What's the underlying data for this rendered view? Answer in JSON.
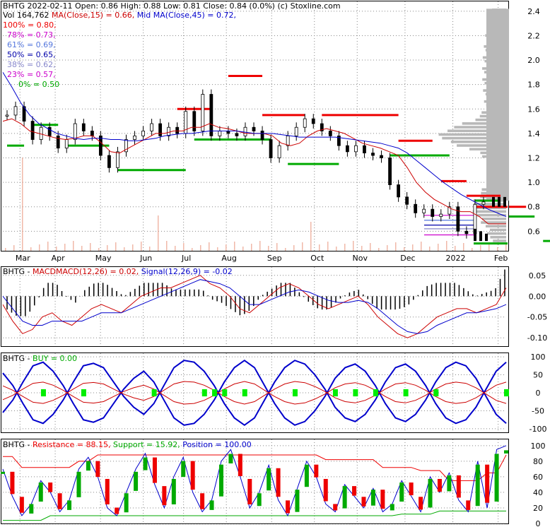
{
  "colors": {
    "ma15": "#cc0000",
    "ma45": "#0000cc",
    "support": "#00aa00",
    "resistance": "#ee0000",
    "volume_profile": "#b8b8b8",
    "macd_hist": "#000000",
    "buy_marker": "#00ee00",
    "stoch_k": "#00aa00",
    "stoch_d": "#ee0000"
  },
  "price_panel": {
    "header_line1": "BHTG  2022-02-11 Open: 0.86  High: 0.88  Low: 0.81  Close: 0.84 (0.0%)  (c) Stoxline.com",
    "header_vol": "Vol 164,762",
    "header_ma": "MA(Close,15) = 0.66,",
    "header_mid": "Mid MA(Close,45) = 0.72,",
    "fib": [
      {
        "label": "100% = 0.80,",
        "color": "#ee0000"
      },
      {
        "label": "78% = 0.73,",
        "color": "#cc00cc"
      },
      {
        "label": "61% = 0.69,",
        "color": "#5577dd"
      },
      {
        "label": "50% = 0.65,",
        "color": "#0000aa"
      },
      {
        "label": "38% = 0.62,",
        "color": "#8888cc"
      },
      {
        "label": "23% = 0.57,",
        "color": "#cc00cc"
      },
      {
        "label": "0% = 0.50",
        "color": "#00aa00"
      }
    ]
  },
  "macd_panel": {
    "name": "BHTG - ",
    "label_macd": "MACDMACD(12,26) = 0.02,",
    "label_signal": "Signal(12,26,9) = -0.02"
  },
  "buy_panel": {
    "name": "BHTG - ",
    "label_buy": "BUY = 0.00"
  },
  "srp_panel": {
    "name": "BHTG - ",
    "label_res": "Resistance = 88.15,",
    "label_sup": "Support = 15.92,",
    "label_pos": "Position = 100.00"
  },
  "chart_data": [
    {
      "type": "candlestick",
      "title": "BHTG  2022-02-11 Open: 0.86  High: 0.88  Low: 0.81  Close: 0.84 (0.0%)",
      "x_labels": [
        "Mar",
        "Apr",
        "May",
        "Jun",
        "Jul",
        "Aug",
        "Sep",
        "Oct",
        "Nov",
        "Dec",
        "2022",
        "Feb"
      ],
      "y_ticks": [
        0.6,
        0.8,
        1.0,
        1.2,
        1.4,
        1.6,
        1.8,
        2.0,
        2.2,
        2.4
      ],
      "ylim": [
        0.44,
        2.48
      ],
      "close_series": [
        1.55,
        1.62,
        1.5,
        1.35,
        1.45,
        1.38,
        1.28,
        1.35,
        1.48,
        1.42,
        1.38,
        1.22,
        1.12,
        1.25,
        1.35,
        1.38,
        1.42,
        1.48,
        1.38,
        1.45,
        1.4,
        1.58,
        1.42,
        1.72,
        1.38,
        1.42,
        1.4,
        1.38,
        1.45,
        1.42,
        1.35,
        1.2,
        1.3,
        1.38,
        1.45,
        1.52,
        1.48,
        1.42,
        1.38,
        1.3,
        1.25,
        1.3,
        1.24,
        1.22,
        1.2,
        0.98,
        0.88,
        0.82,
        0.75,
        0.78,
        0.72,
        0.74,
        0.8,
        0.6,
        0.58,
        0.82,
        0.84
      ],
      "ma15": [
        1.5,
        1.52,
        1.48,
        1.42,
        1.4,
        1.38,
        1.36,
        1.35,
        1.36,
        1.38,
        1.38,
        1.32,
        1.25,
        1.24,
        1.28,
        1.32,
        1.36,
        1.4,
        1.4,
        1.42,
        1.42,
        1.45,
        1.45,
        1.48,
        1.45,
        1.44,
        1.42,
        1.4,
        1.4,
        1.4,
        1.38,
        1.32,
        1.3,
        1.32,
        1.38,
        1.42,
        1.44,
        1.42,
        1.4,
        1.36,
        1.32,
        1.3,
        1.28,
        1.25,
        1.22,
        1.12,
        1.0,
        0.92,
        0.86,
        0.82,
        0.78,
        0.76,
        0.76,
        0.72,
        0.66,
        0.66,
        0.66
      ],
      "ma45": [
        1.9,
        1.78,
        1.65,
        1.55,
        1.48,
        1.44,
        1.4,
        1.38,
        1.36,
        1.35,
        1.36,
        1.36,
        1.35,
        1.35,
        1.34,
        1.34,
        1.35,
        1.36,
        1.38,
        1.39,
        1.4,
        1.4,
        1.41,
        1.42,
        1.42,
        1.42,
        1.42,
        1.41,
        1.4,
        1.4,
        1.4,
        1.39,
        1.38,
        1.37,
        1.37,
        1.37,
        1.37,
        1.37,
        1.36,
        1.35,
        1.34,
        1.33,
        1.32,
        1.3,
        1.28,
        1.24,
        1.18,
        1.12,
        1.06,
        1.0,
        0.95,
        0.9,
        0.86,
        0.82,
        0.78,
        0.75,
        0.72
      ],
      "resistance_levels": [
        {
          "i0": 20,
          "i1": 24,
          "y": 1.6
        },
        {
          "i0": 26,
          "i1": 30,
          "y": 1.87
        },
        {
          "i0": 30,
          "i1": 35,
          "y": 1.55
        },
        {
          "i0": 37,
          "i1": 46,
          "y": 1.55
        },
        {
          "i0": 46,
          "i1": 50,
          "y": 1.34
        },
        {
          "i0": 51,
          "i1": 54,
          "y": 1.01
        },
        {
          "i0": 54,
          "i1": 58,
          "y": 0.89
        },
        {
          "i0": 59,
          "i1": 61,
          "y": 0.8
        }
      ],
      "support_levels": [
        {
          "i0": 0,
          "i1": 2,
          "y": 1.3
        },
        {
          "i0": 3,
          "i1": 6,
          "y": 1.47
        },
        {
          "i0": 7,
          "i1": 12,
          "y": 1.3
        },
        {
          "i0": 13,
          "i1": 21,
          "y": 1.1
        },
        {
          "i0": 22,
          "i1": 31,
          "y": 1.35
        },
        {
          "i0": 33,
          "i1": 39,
          "y": 1.15
        },
        {
          "i0": 45,
          "i1": 52,
          "y": 1.22
        },
        {
          "i0": 55,
          "i1": 58,
          "y": 0.85
        },
        {
          "i0": 59,
          "i1": 62,
          "y": 0.72
        },
        {
          "i0": 63,
          "i1": 66,
          "y": 0.52
        }
      ]
    },
    {
      "type": "bar",
      "title": "MACDMACD(12,26) = 0.02, Signal(12,26,9) = -0.02",
      "y_ticks": [
        0.05,
        0.0,
        -0.05,
        -0.1
      ],
      "ylim": [
        -0.12,
        0.07
      ],
      "series": [
        {
          "name": "MACD",
          "values": [
            -0.02,
            -0.06,
            -0.09,
            -0.08,
            -0.05,
            -0.04,
            -0.06,
            -0.07,
            -0.05,
            -0.03,
            -0.02,
            -0.03,
            -0.04,
            -0.02,
            0.0,
            0.01,
            0.02,
            0.02,
            0.03,
            0.04,
            0.05,
            0.03,
            0.02,
            0.0,
            -0.03,
            -0.04,
            -0.02,
            0.0,
            0.02,
            0.03,
            0.02,
            0.0,
            -0.02,
            -0.03,
            -0.02,
            -0.01,
            0.0,
            -0.02,
            -0.05,
            -0.07,
            -0.09,
            -0.1,
            -0.09,
            -0.07,
            -0.05,
            -0.04,
            -0.03,
            -0.03,
            -0.04,
            -0.03,
            -0.02,
            0.02
          ]
        },
        {
          "name": "Signal",
          "values": [
            0.0,
            -0.03,
            -0.06,
            -0.07,
            -0.07,
            -0.06,
            -0.06,
            -0.06,
            -0.06,
            -0.05,
            -0.04,
            -0.04,
            -0.04,
            -0.03,
            -0.02,
            -0.01,
            0.0,
            0.01,
            0.02,
            0.03,
            0.04,
            0.035,
            0.03,
            0.02,
            0.0,
            -0.02,
            -0.02,
            -0.01,
            0.0,
            0.01,
            0.015,
            0.01,
            0.0,
            -0.01,
            -0.015,
            -0.015,
            -0.01,
            -0.015,
            -0.03,
            -0.05,
            -0.07,
            -0.085,
            -0.09,
            -0.085,
            -0.07,
            -0.06,
            -0.05,
            -0.04,
            -0.04,
            -0.035,
            -0.03,
            -0.02
          ]
        }
      ]
    },
    {
      "type": "line",
      "title": "BUY = 0.00",
      "y_ticks": [
        100,
        50,
        0,
        -50,
        -100
      ],
      "ylim": [
        -110,
        110
      ],
      "series": [
        {
          "name": "upper band",
          "values": [
            55,
            20,
            -30,
            -75,
            -85,
            -60,
            -20,
            30,
            75,
            82,
            70,
            30,
            -10,
            -40,
            -60,
            -30,
            20,
            70,
            90,
            85,
            60,
            20,
            -30,
            -70,
            -90,
            -70,
            -20,
            30,
            70,
            90,
            80,
            50,
            10,
            -40,
            -70,
            -80,
            -60,
            -20,
            30,
            70,
            80,
            60,
            20,
            -30,
            -70,
            -85,
            -75,
            -40,
            10,
            60,
            85
          ]
        },
        {
          "name": "lower band",
          "values": [
            -55,
            -20,
            30,
            75,
            85,
            60,
            20,
            -30,
            -75,
            -82,
            -70,
            -30,
            10,
            40,
            60,
            30,
            -20,
            -70,
            -90,
            -85,
            -60,
            -20,
            30,
            70,
            90,
            70,
            20,
            -30,
            -70,
            -90,
            -80,
            -50,
            -10,
            40,
            70,
            80,
            60,
            20,
            -30,
            -70,
            -80,
            -60,
            -20,
            30,
            70,
            85,
            75,
            40,
            -10,
            -60,
            -85
          ]
        }
      ],
      "buy_markers_index": [
        4,
        8,
        15,
        20,
        21,
        22,
        24,
        29,
        33,
        35,
        37,
        40,
        43,
        50
      ]
    },
    {
      "type": "line",
      "title": "Resistance = 88.15, Support = 15.92, Position = 100.00",
      "y_ticks": [
        100,
        80,
        60,
        40,
        20,
        0
      ],
      "ylim": [
        0,
        108
      ],
      "series": [
        {
          "name": "Resistance",
          "values": [
            86,
            86,
            72,
            72,
            72,
            72,
            72,
            72,
            80,
            80,
            88,
            88,
            88,
            88,
            88,
            88,
            88,
            88,
            88,
            88,
            88,
            88,
            88,
            88,
            88,
            88,
            88,
            88,
            88,
            88,
            88,
            88,
            88,
            88,
            82,
            82,
            82,
            82,
            82,
            82,
            72,
            72,
            72,
            72,
            68,
            68,
            68,
            55,
            55,
            55,
            55,
            65,
            65,
            88
          ]
        },
        {
          "name": "Support",
          "values": [
            4,
            4,
            4,
            4,
            4,
            10,
            10,
            10,
            10,
            10,
            10,
            10,
            10,
            10,
            10,
            10,
            10,
            10,
            10,
            10,
            10,
            10,
            10,
            10,
            10,
            10,
            10,
            10,
            10,
            10,
            10,
            10,
            10,
            10,
            10,
            10,
            10,
            10,
            10,
            10,
            10,
            10,
            12,
            12,
            12,
            12,
            16,
            16,
            16,
            16,
            16,
            16,
            16,
            16
          ]
        },
        {
          "name": "Position",
          "values": [
            70,
            35,
            10,
            25,
            55,
            40,
            15,
            30,
            70,
            85,
            60,
            20,
            10,
            40,
            70,
            90,
            50,
            20,
            60,
            85,
            40,
            15,
            30,
            80,
            95,
            60,
            20,
            40,
            75,
            30,
            10,
            45,
            80,
            60,
            25,
            15,
            50,
            35,
            20,
            45,
            15,
            25,
            55,
            35,
            15,
            60,
            40,
            65,
            30,
            15,
            80,
            20,
            95,
            100
          ]
        }
      ]
    }
  ]
}
